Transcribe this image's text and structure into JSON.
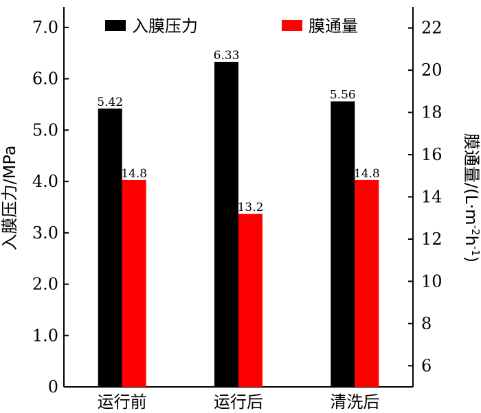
{
  "chart_data": {
    "type": "bar",
    "categories": [
      "运行前",
      "运行后",
      "清洗后"
    ],
    "series": [
      {
        "name": "入膜压力",
        "axis": "left",
        "color": "#000000",
        "values": [
          5.42,
          6.33,
          5.56
        ],
        "labels": [
          "5.42",
          "6.33",
          "5.56"
        ]
      },
      {
        "name": "膜通量",
        "axis": "right",
        "color": "#ff0000",
        "values": [
          14.8,
          13.2,
          14.8
        ],
        "labels": [
          "14.8",
          "13.2",
          "14.8"
        ]
      }
    ],
    "y_left": {
      "label": "入膜压力/MPa",
      "range": [
        0,
        7.4
      ],
      "ticks": [
        0,
        1,
        2,
        3,
        4,
        5,
        6,
        7
      ],
      "tick_labels": [
        "0",
        "1.0",
        "2.0",
        "3.0",
        "4.0",
        "5.0",
        "6.0",
        "7.0"
      ]
    },
    "y_right": {
      "label_parts": [
        "膜通量/(L·m",
        "-2",
        "h",
        "-1",
        ")"
      ],
      "range": [
        5,
        23
      ],
      "ticks": [
        6,
        8,
        10,
        12,
        14,
        16,
        18,
        20,
        22
      ],
      "tick_labels": [
        "6",
        "8",
        "10",
        "12",
        "14",
        "16",
        "18",
        "20",
        "22"
      ]
    },
    "legend": {
      "position": "top",
      "entries": [
        "入膜压力",
        "膜通量"
      ]
    },
    "grid": false
  }
}
